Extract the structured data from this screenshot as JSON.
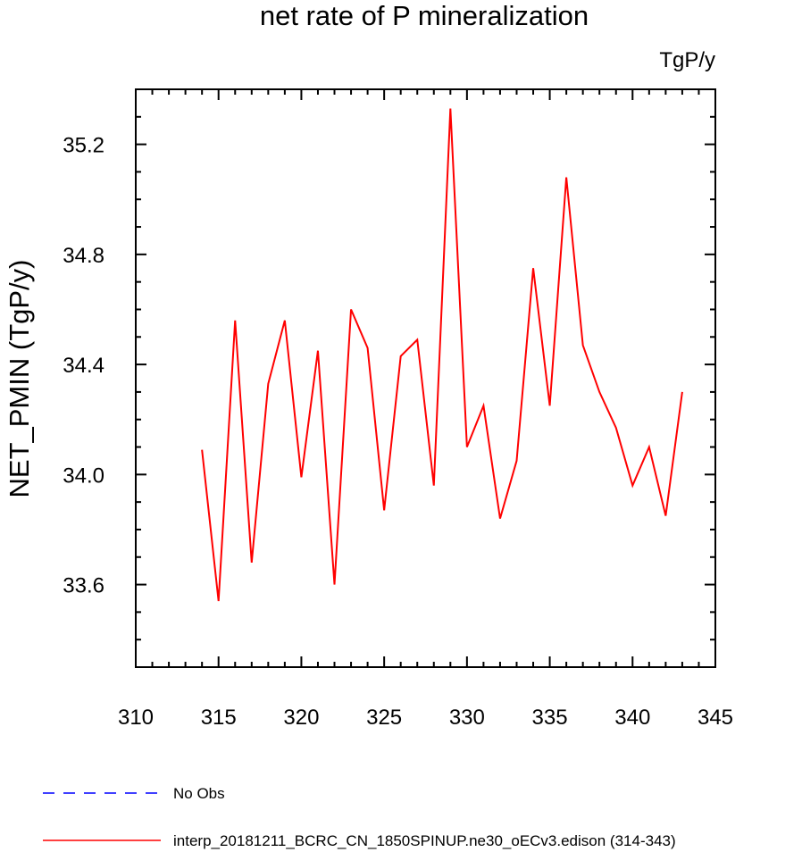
{
  "chart_data": {
    "type": "line",
    "title": "net rate of P mineralization",
    "units_label": "TgP/y",
    "ylabel": "NET_PMIN  (TgP/y)",
    "xlabel": "",
    "xlim": [
      310,
      345
    ],
    "ylim": [
      33.3,
      35.4
    ],
    "x_ticks": [
      310,
      315,
      320,
      325,
      330,
      335,
      340,
      345
    ],
    "y_ticks": [
      33.6,
      34.0,
      34.4,
      34.8,
      35.2
    ],
    "x_tick_labels": [
      "310",
      "315",
      "320",
      "325",
      "330",
      "335",
      "340",
      "345"
    ],
    "y_tick_labels": [
      "33.6",
      "34.0",
      "34.4",
      "34.8",
      "35.2"
    ],
    "grid": false,
    "legend_position": "bottom",
    "series": [
      {
        "name": "interp_20181211_BCRC_CN_1850SPINUP.ne30_oECv3.edison (314-343)",
        "color": "#ff0000",
        "dash": "solid",
        "x": [
          314,
          315,
          316,
          317,
          318,
          319,
          320,
          321,
          322,
          323,
          324,
          325,
          326,
          327,
          328,
          329,
          330,
          331,
          332,
          333,
          334,
          335,
          336,
          337,
          338,
          339,
          340,
          341,
          342,
          343
        ],
        "y": [
          34.09,
          33.54,
          34.56,
          33.68,
          34.33,
          34.56,
          33.99,
          34.45,
          33.6,
          34.6,
          34.46,
          33.87,
          34.43,
          34.49,
          33.96,
          35.33,
          34.1,
          34.25,
          33.84,
          34.05,
          34.75,
          34.25,
          35.08,
          34.47,
          34.3,
          34.17,
          33.96,
          34.1,
          33.85,
          34.3
        ]
      }
    ],
    "legend": [
      {
        "label": "No Obs",
        "color": "#0000ff",
        "dash": "dashed"
      },
      {
        "label": "interp_20181211_BCRC_CN_1850SPINUP.ne30_oECv3.edison (314-343)",
        "color": "#ff0000",
        "dash": "solid"
      }
    ]
  }
}
